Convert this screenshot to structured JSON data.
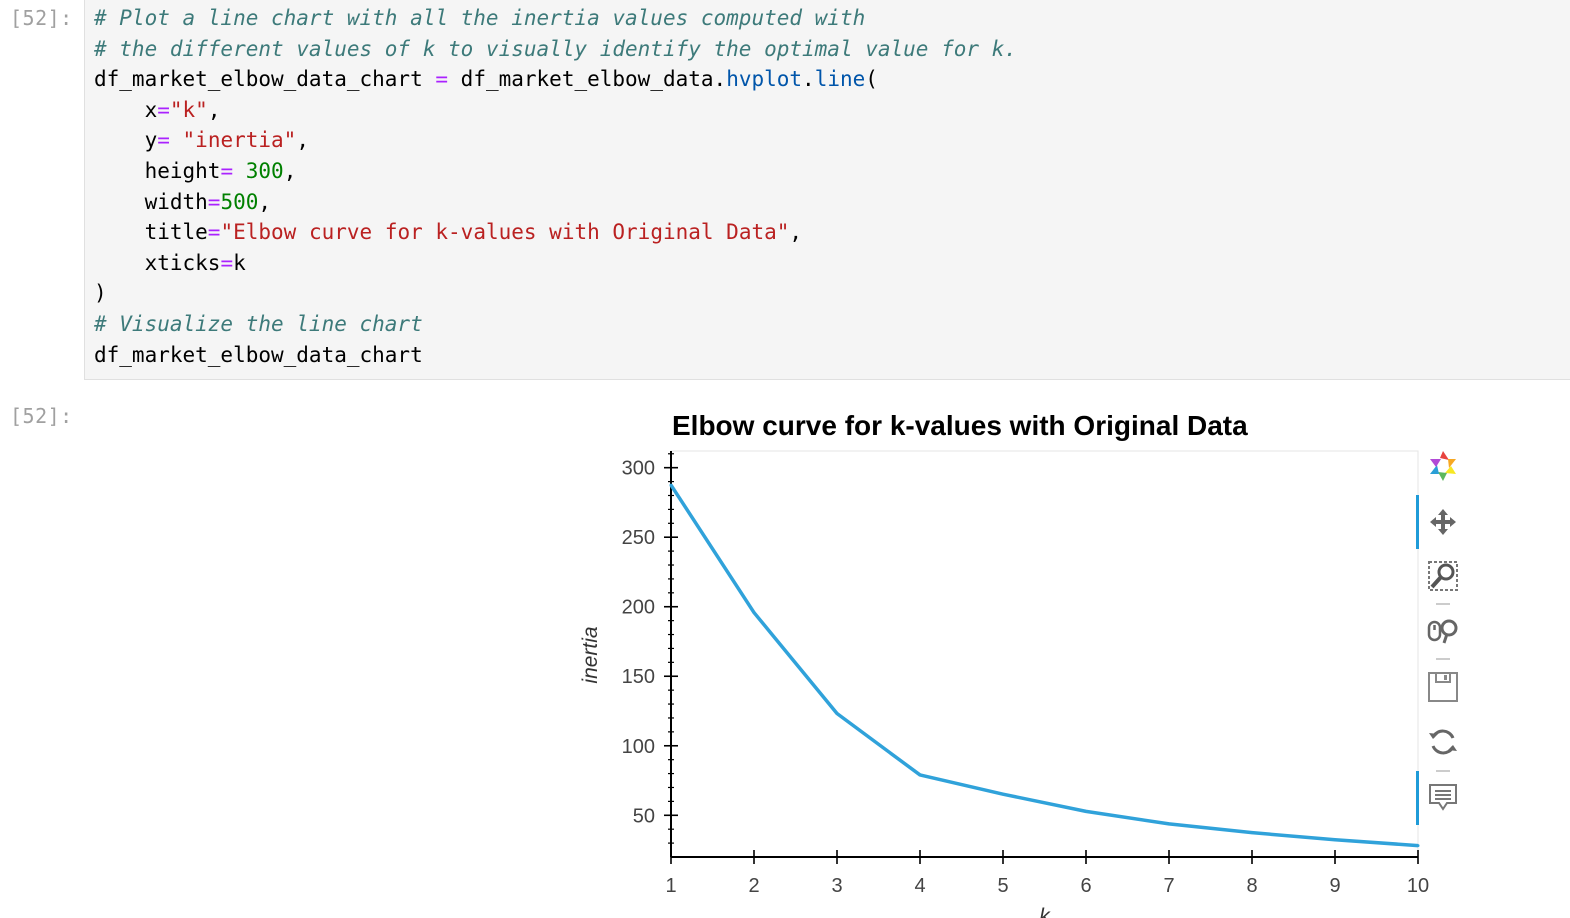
{
  "input_cell": {
    "prompt": "[52]:",
    "lines": [
      [
        {
          "t": "# Plot a line chart with all the inertia values computed with",
          "c": "cm"
        }
      ],
      [
        {
          "t": "# the different values of k to visually identify the optimal value for k.",
          "c": "cm"
        }
      ],
      [
        {
          "t": "df_market_elbow_data_chart ",
          "c": ""
        },
        {
          "t": "=",
          "c": "op"
        },
        {
          "t": " df_market_elbow_data.",
          "c": ""
        },
        {
          "t": "hvplot",
          "c": "fn"
        },
        {
          "t": ".",
          "c": ""
        },
        {
          "t": "line",
          "c": "fn"
        },
        {
          "t": "(",
          "c": ""
        }
      ],
      [
        {
          "t": "    x",
          "c": ""
        },
        {
          "t": "=",
          "c": "op"
        },
        {
          "t": "\"k\"",
          "c": "st"
        },
        {
          "t": ",",
          "c": ""
        }
      ],
      [
        {
          "t": "    y",
          "c": ""
        },
        {
          "t": "=",
          "c": "op"
        },
        {
          "t": " ",
          "c": ""
        },
        {
          "t": "\"inertia\"",
          "c": "st"
        },
        {
          "t": ",",
          "c": ""
        }
      ],
      [
        {
          "t": "    height",
          "c": ""
        },
        {
          "t": "=",
          "c": "op"
        },
        {
          "t": " ",
          "c": ""
        },
        {
          "t": "300",
          "c": "nm"
        },
        {
          "t": ",",
          "c": ""
        }
      ],
      [
        {
          "t": "    width",
          "c": ""
        },
        {
          "t": "=",
          "c": "op"
        },
        {
          "t": "500",
          "c": "nm"
        },
        {
          "t": ",",
          "c": ""
        }
      ],
      [
        {
          "t": "    title",
          "c": ""
        },
        {
          "t": "=",
          "c": "op"
        },
        {
          "t": "\"Elbow curve for k-values with Original Data\"",
          "c": "st"
        },
        {
          "t": ",",
          "c": ""
        }
      ],
      [
        {
          "t": "    xticks",
          "c": ""
        },
        {
          "t": "=",
          "c": "op"
        },
        {
          "t": "k",
          "c": ""
        }
      ],
      [
        {
          "t": ")",
          "c": ""
        }
      ],
      [
        {
          "t": "# Visualize the line chart",
          "c": "cm"
        }
      ],
      [
        {
          "t": "df_market_elbow_data_chart",
          "c": ""
        }
      ]
    ]
  },
  "output_cell": {
    "prompt": "[52]:"
  },
  "chart_data": {
    "type": "line",
    "title": "Elbow curve for k-values with Original Data",
    "xlabel": "k",
    "ylabel": "inertia",
    "x": [
      1,
      2,
      3,
      4,
      5,
      6,
      7,
      8,
      9,
      10
    ],
    "series": [
      {
        "values": [
          287.5,
          195.8,
          123.2,
          79.0,
          65.2,
          52.8,
          43.8,
          37.5,
          32.4,
          28.2
        ]
      }
    ],
    "xticks": [
      "1",
      "2",
      "3",
      "4",
      "5",
      "6",
      "7",
      "8",
      "9",
      "10"
    ],
    "yticks": [
      50,
      100,
      150,
      200,
      250,
      300
    ],
    "xlim": [
      1,
      10
    ],
    "ylim": [
      20,
      312
    ],
    "line_color": "#30a2da",
    "grid": false
  },
  "toolbar": {
    "tools": [
      "bokeh-logo-icon",
      "pan-icon",
      "box-zoom-icon",
      "wheel-zoom-icon",
      "save-icon",
      "reset-icon",
      "hover-icon"
    ]
  },
  "colors": {
    "comment": "#3d7a7a",
    "string": "#ba2121",
    "number": "#008000",
    "operator": "#aa22ff",
    "function": "#0055aa",
    "cell_bg": "#f5f5f5"
  }
}
